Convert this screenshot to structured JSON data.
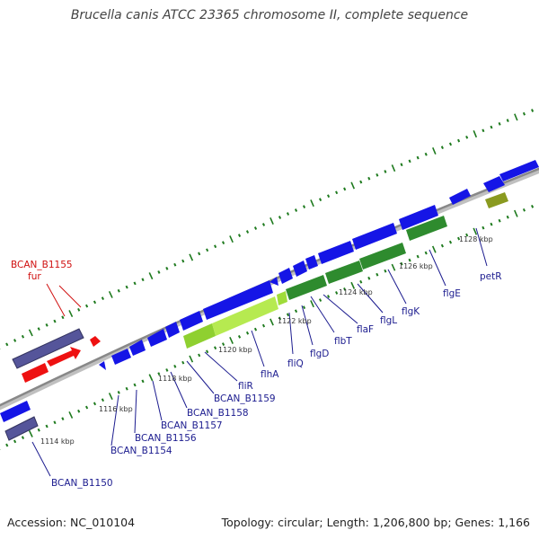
{
  "title": "Brucella canis ATCC 23365 chromosome II, complete sequence",
  "footer": {
    "accession": "Accession: NC_010104",
    "summary": "Topology: circular; Length: 1,206,800 bp; Genes: 1,166"
  },
  "colors": {
    "background": "#ffffff",
    "backbone": "#8c8c8c",
    "gene_blue": "#1515e6",
    "gene_navy": "#55559a",
    "gene_red": "#ee1111",
    "gene_green": "#2e8b2e",
    "gene_lightgreen": "#9fdc3a",
    "gene_olive": "#8a9a20",
    "tick_green": "#1e7a1e",
    "label_blue": "#1c1c8f",
    "label_red": "#d01010"
  },
  "scale_labels": [
    "1114 kbp",
    "1116 kbp",
    "1118 kbp",
    "1120 kbp",
    "1122 kbp",
    "1124 kbp",
    "1126 kbp",
    "1128 kbp"
  ],
  "gene_labels_lower": [
    "BCAN_B1150",
    "BCAN_B1154",
    "BCAN_B1156",
    "BCAN_B1157",
    "BCAN_B1158",
    "BCAN_B1159",
    "fliR",
    "flhA",
    "fliQ",
    "flgD",
    "flbT",
    "flaF",
    "flgL",
    "flgK",
    "flgE",
    "petR"
  ],
  "gene_labels_upper": [
    "BCAN_B1155",
    "fur"
  ]
}
